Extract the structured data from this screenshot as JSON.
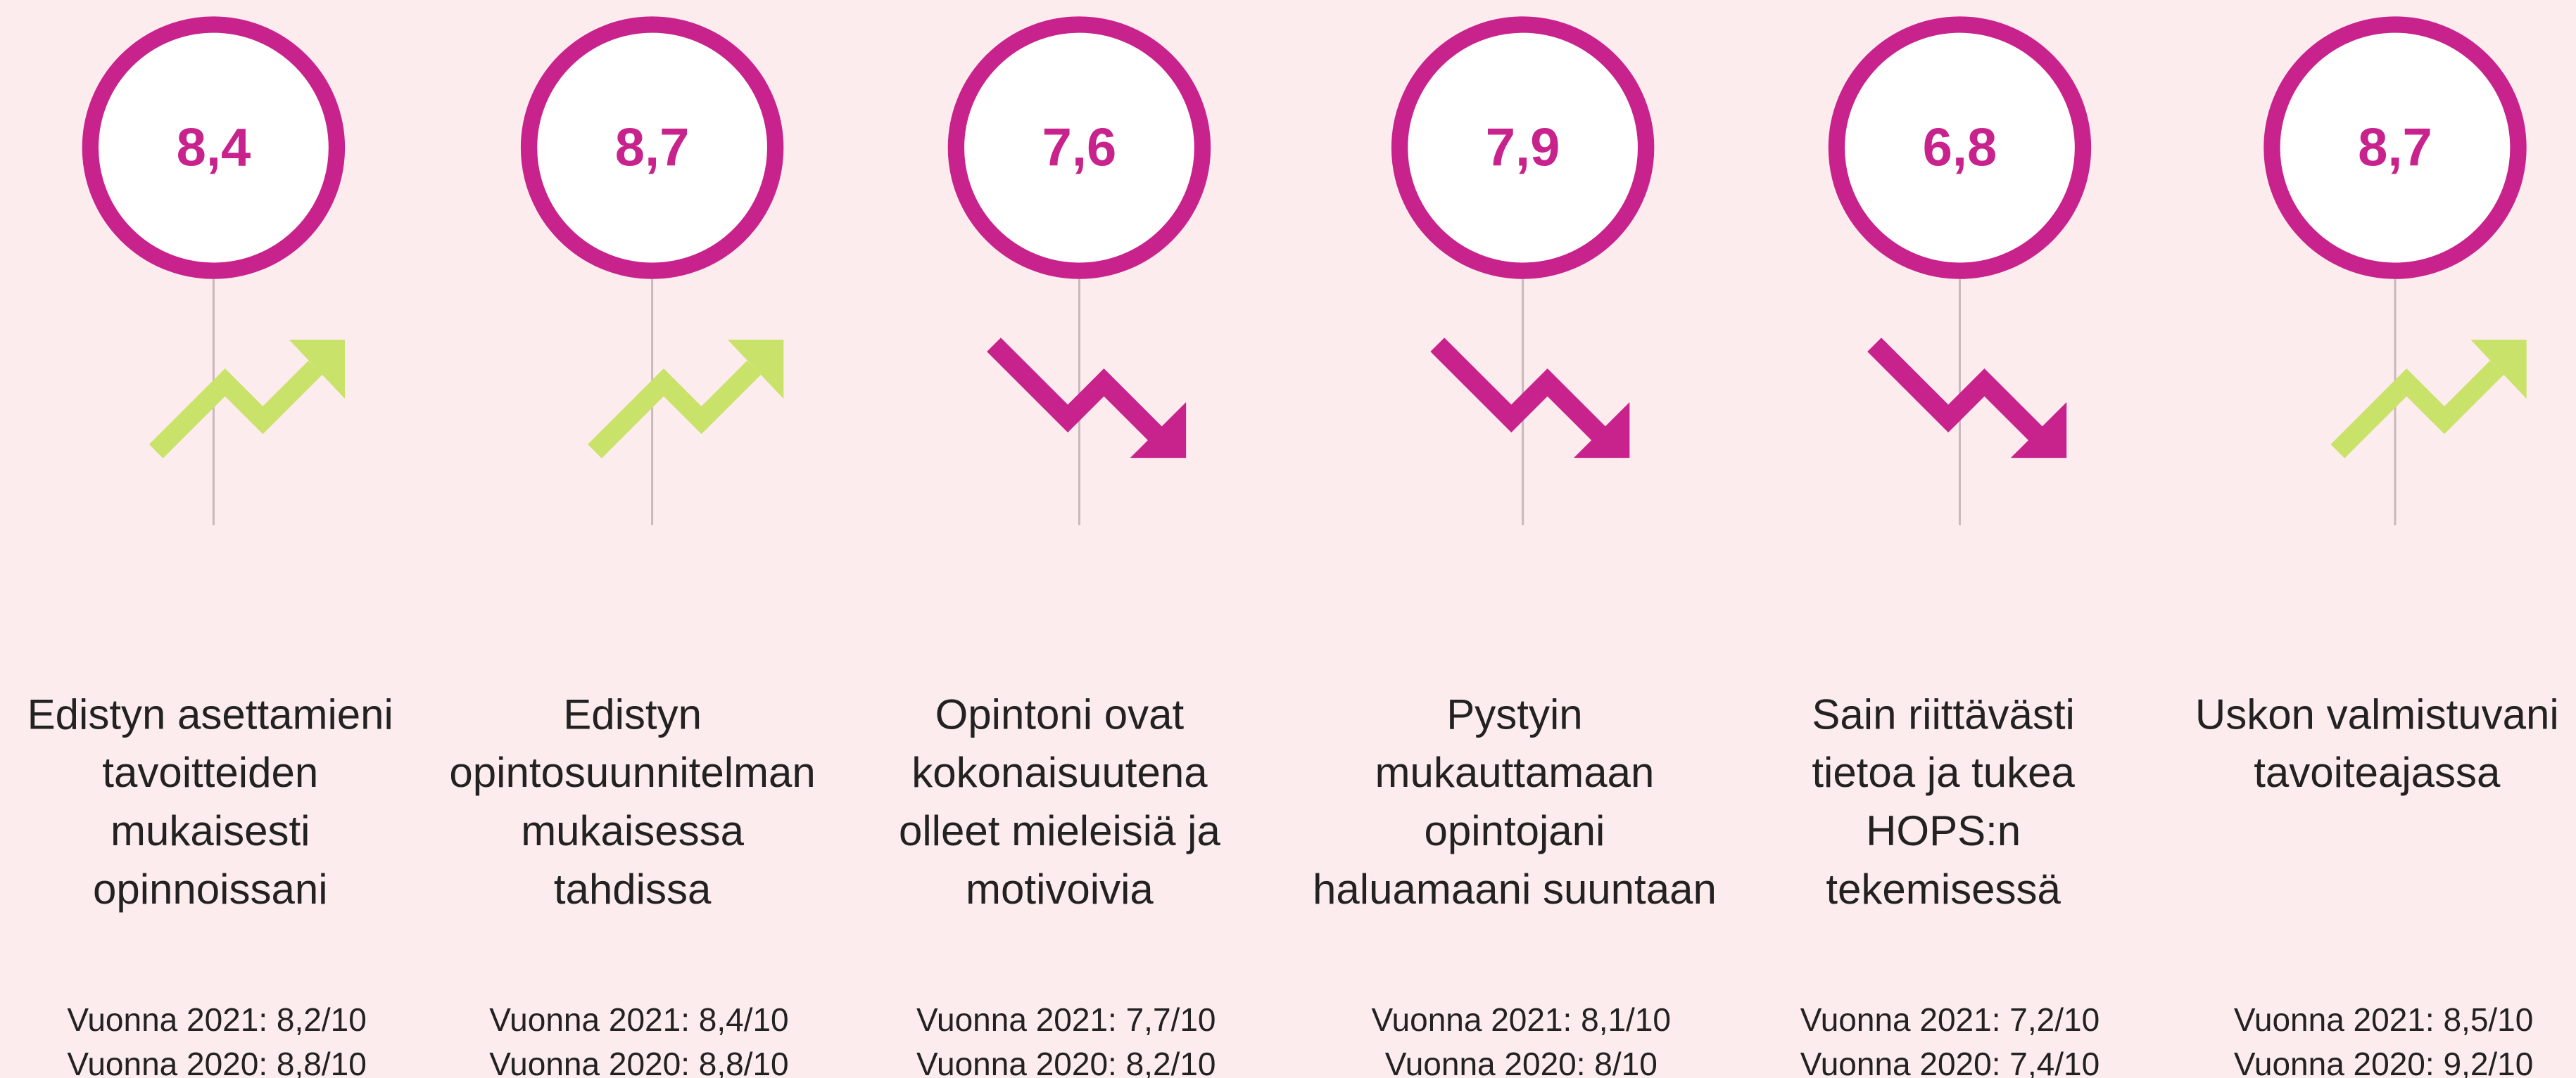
{
  "items": [
    {
      "score": "8,4",
      "trend": "up",
      "label_lines": [
        "Edistyn asettamieni",
        "tavoitteiden",
        "mukaisesti",
        "opinnoissani"
      ],
      "history": [
        "Vuonna 2021: 8,2/10",
        "Vuonna 2020: 8,8/10"
      ]
    },
    {
      "score": "8,7",
      "trend": "up",
      "label_lines": [
        "Edistyn",
        "opintosuunnitelman",
        "mukaisessa",
        "tahdissa"
      ],
      "history": [
        "Vuonna 2021: 8,4/10",
        "Vuonna 2020: 8,8/10"
      ]
    },
    {
      "score": "7,6",
      "trend": "down",
      "label_lines": [
        "Opintoni ovat",
        "kokonaisuutena",
        "olleet mieleisiä ja",
        "motivoivia"
      ],
      "history": [
        "Vuonna 2021: 7,7/10",
        "Vuonna 2020: 8,2/10"
      ]
    },
    {
      "score": "7,9",
      "trend": "down",
      "label_lines": [
        "Pystyin",
        "mukauttamaan",
        "opintojani",
        "haluamaani suuntaan"
      ],
      "history": [
        "Vuonna 2021: 8,1/10",
        "Vuonna 2020: 8/10"
      ]
    },
    {
      "score": "6,8",
      "trend": "down",
      "label_lines": [
        "Sain riittävästi",
        "tietoa ja tukea",
        "HOPS:n",
        "tekemisessä"
      ],
      "history": [
        "Vuonna 2021: 7,2/10",
        "Vuonna 2020: 7,4/10"
      ]
    },
    {
      "score": "8,7",
      "trend": "up",
      "label_lines": [
        "Uskon valmistuvani",
        "tavoiteajassa"
      ],
      "history": [
        "Vuonna 2021: 8,5/10",
        "Vuonna 2020: 9,2/10"
      ]
    }
  ]
}
